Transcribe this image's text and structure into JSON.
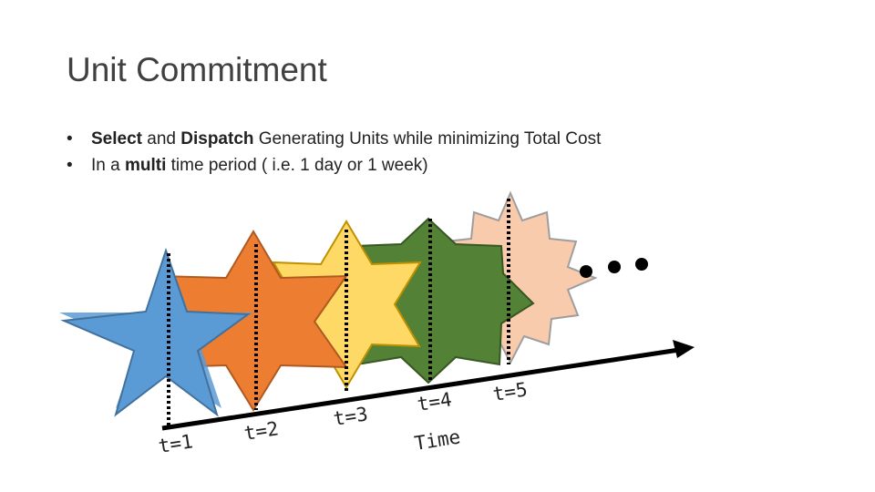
{
  "slide": {
    "title": "Unit Commitment",
    "bullets": [
      {
        "marker": "•",
        "parts": [
          {
            "text": "Select",
            "bold": true
          },
          {
            "text": " and ",
            "bold": false
          },
          {
            "text": "Dispatch",
            "bold": true
          },
          {
            "text": " Generating Units while minimizing Total Cost",
            "bold": false
          }
        ]
      },
      {
        "marker": "•",
        "parts": [
          {
            "text": "In a ",
            "bold": false
          },
          {
            "text": "multi",
            "bold": true
          },
          {
            "text": " time period ( i.e. 1 day or 1 week)",
            "bold": false
          }
        ]
      }
    ]
  },
  "diagram": {
    "time_labels": [
      "t=1",
      "t=2",
      "t=3",
      "t=4",
      "t=5"
    ],
    "axis_label": "Time",
    "colors": {
      "star_1": "#5B9BD5",
      "star_2": "#ED7D31",
      "star_3": "#FFD966",
      "star_4": "#538135",
      "star_5": "#F8CBAD",
      "outline": "#41719C",
      "arrow": "#000000"
    }
  }
}
